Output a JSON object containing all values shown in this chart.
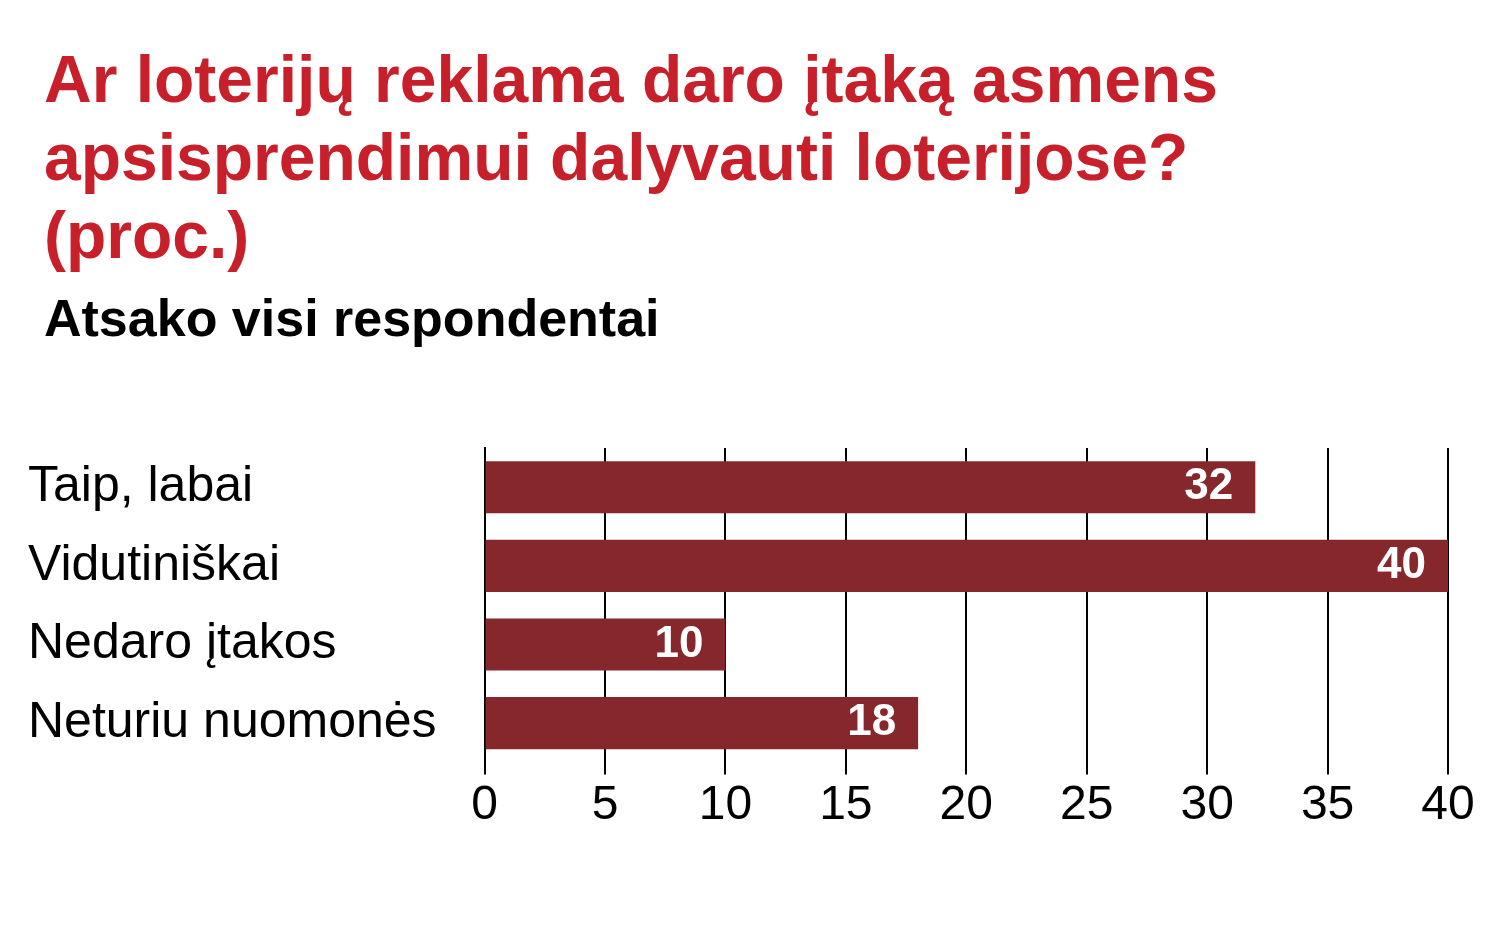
{
  "chart_data": {
    "type": "bar",
    "orientation": "horizontal",
    "title": "Ar loterijų reklama daro įtaką asmens apsisprendimui dalyvauti loterijose? (proc.)",
    "subtitle": "Atsako visi respondentai",
    "categories": [
      "Taip, labai",
      "Vidutiniškai",
      "Nedaro įtakos",
      "Neturiu nuomonės"
    ],
    "values": [
      32,
      40,
      10,
      18
    ],
    "color": "#86282b",
    "xlim": [
      0,
      40
    ],
    "xticks": [
      0,
      5,
      10,
      15,
      20,
      25,
      30,
      35,
      40
    ],
    "grid": "x",
    "data_labels": true
  }
}
